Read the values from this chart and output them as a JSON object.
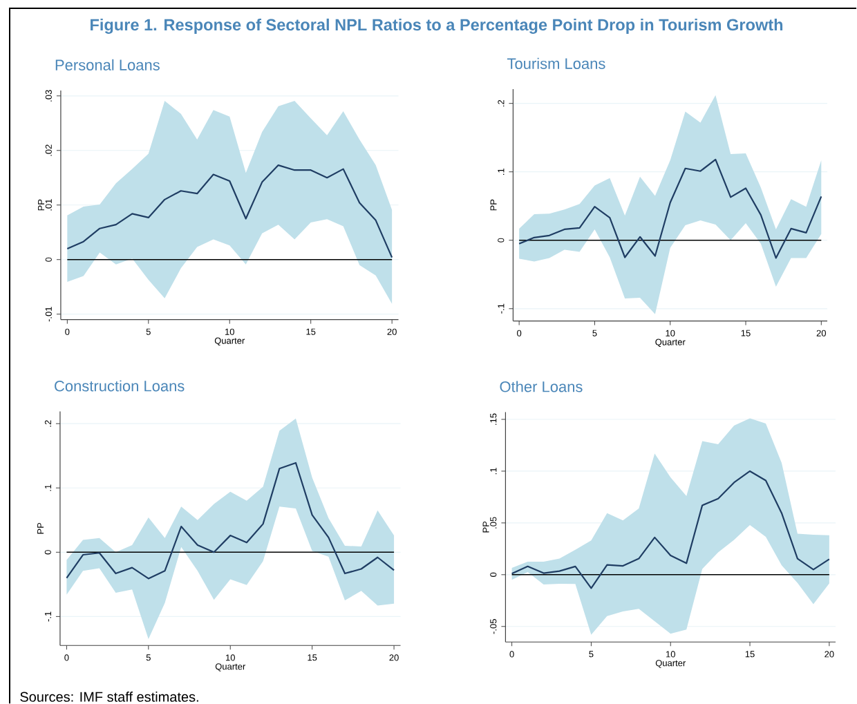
{
  "chart_data": [
    {
      "type": "line",
      "title": "Personal Loans",
      "xlabel": "Quarter",
      "ylabel": "PP",
      "annotations": [
        "Figure 1. Response of Sectoral  NPL Ratios to a Percentage Point Drop in Tourism Growth",
        "Sources: IMF staff estimates."
      ],
      "x": [
        0,
        1,
        2,
        3,
        4,
        5,
        6,
        7,
        8,
        9,
        10,
        11,
        12,
        13,
        14,
        15,
        16,
        17,
        18,
        19,
        20
      ],
      "series": [
        {
          "color": "#1f3d63",
          "values": [
            0.002,
            0.0033,
            0.0057,
            0.0064,
            0.0084,
            0.0077,
            0.011,
            0.0126,
            0.0121,
            0.0156,
            0.0144,
            0.0075,
            0.0142,
            0.0173,
            0.0164,
            0.0164,
            0.015,
            0.0166,
            0.0104,
            0.0072,
            0.0004
          ],
          "upper": [
            0.0081,
            0.0097,
            0.0101,
            0.014,
            0.0166,
            0.0194,
            0.0291,
            0.0267,
            0.022,
            0.0274,
            0.0262,
            0.0159,
            0.0234,
            0.0281,
            0.0291,
            0.0259,
            0.0228,
            0.0272,
            0.022,
            0.0173,
            0.0091
          ],
          "lower": [
            -0.0041,
            -0.003,
            0.0013,
            -0.0009,
            0.0002,
            -0.0037,
            -0.0071,
            -0.0016,
            0.0023,
            0.0037,
            0.0026,
            -0.0009,
            0.0048,
            0.0064,
            0.0037,
            0.0068,
            0.0074,
            0.0061,
            -0.001,
            -0.0029,
            -0.0081
          ]
        }
      ],
      "xlim": [
        -0.4,
        20.4
      ],
      "ylim": [
        -0.011,
        0.031
      ],
      "xticks": [
        0,
        5,
        10,
        15,
        20
      ],
      "yticks": [
        {
          "value": -0.01,
          "label": "-.01"
        },
        0,
        {
          "value": 0.01,
          "label": ".01"
        },
        {
          "value": 0.02,
          "label": ".02"
        },
        {
          "value": 0.03,
          "label": ".03"
        }
      ],
      "grid": "y",
      "ref_lines": [
        {
          "axis": "y",
          "value": 0,
          "color": "#000000"
        }
      ]
    },
    {
      "type": "line",
      "title": "Tourism Loans",
      "xlabel": "Quarter",
      "ylabel": "PP",
      "x": [
        0,
        1,
        2,
        3,
        4,
        5,
        6,
        7,
        8,
        9,
        10,
        11,
        12,
        13,
        14,
        15,
        16,
        17,
        18,
        19,
        20
      ],
      "series": [
        {
          "color": "#1f3d63",
          "values": [
            -0.005,
            0.004,
            0.007,
            0.016,
            0.018,
            0.049,
            0.033,
            -0.025,
            0.005,
            -0.023,
            0.055,
            0.105,
            0.101,
            0.118,
            0.063,
            0.076,
            0.037,
            -0.026,
            0.017,
            0.011,
            0.064
          ],
          "upper": [
            0.017,
            0.038,
            0.039,
            0.045,
            0.053,
            0.08,
            0.091,
            0.036,
            0.093,
            0.065,
            0.117,
            0.188,
            0.172,
            0.212,
            0.126,
            0.127,
            0.077,
            0.016,
            0.06,
            0.049,
            0.117
          ],
          "lower": [
            -0.027,
            -0.031,
            -0.026,
            -0.014,
            -0.017,
            0.016,
            -0.025,
            -0.085,
            -0.084,
            -0.108,
            -0.011,
            0.022,
            0.029,
            0.023,
            0,
            0.025,
            -0.005,
            -0.068,
            -0.026,
            -0.026,
            0.009
          ]
        }
      ],
      "xlim": [
        -0.4,
        20.4
      ],
      "ylim": [
        -0.118,
        0.221
      ],
      "xticks": [
        0,
        5,
        10,
        15,
        20
      ],
      "yticks": [
        {
          "value": -0.1,
          "label": "-.1"
        },
        0,
        {
          "value": 0.1,
          "label": ".1"
        },
        {
          "value": 0.2,
          "label": ".2"
        }
      ],
      "grid": "y",
      "ref_lines": [
        {
          "axis": "y",
          "value": 0,
          "color": "#000000"
        }
      ]
    },
    {
      "type": "line",
      "title": "Construction Loans",
      "xlabel": "Quarter",
      "ylabel": "PP",
      "x": [
        0,
        1,
        2,
        3,
        4,
        5,
        6,
        7,
        8,
        9,
        10,
        11,
        12,
        13,
        14,
        15,
        16,
        17,
        18,
        19,
        20
      ],
      "series": [
        {
          "color": "#1f3d63",
          "values": [
            -0.04,
            -0.004,
            -0.001,
            -0.033,
            -0.024,
            -0.041,
            -0.029,
            0.04,
            0.011,
            0,
            0.026,
            0.015,
            0.044,
            0.13,
            0.139,
            0.058,
            0.023,
            -0.033,
            -0.026,
            -0.008,
            -0.028
          ],
          "upper": [
            -0.012,
            0.019,
            0.022,
            0,
            0.011,
            0.054,
            0.022,
            0.071,
            0.05,
            0.075,
            0.094,
            0.08,
            0.102,
            0.189,
            0.208,
            0.116,
            0.053,
            0.01,
            0.009,
            0.065,
            0.026
          ],
          "lower": [
            -0.066,
            -0.029,
            -0.025,
            -0.063,
            -0.058,
            -0.135,
            -0.079,
            0.008,
            -0.029,
            -0.074,
            -0.042,
            -0.051,
            -0.014,
            0.071,
            0.068,
            0.002,
            -0.007,
            -0.075,
            -0.06,
            -0.083,
            -0.08
          ]
        }
      ],
      "xlim": [
        -0.4,
        20.4
      ],
      "ylim": [
        -0.145,
        0.219
      ],
      "xticks": [
        0,
        5,
        10,
        15,
        20
      ],
      "yticks": [
        {
          "value": -0.1,
          "label": "-.1"
        },
        0,
        {
          "value": 0.1,
          "label": ".1"
        },
        {
          "value": 0.2,
          "label": ".2"
        }
      ],
      "grid": "y",
      "ref_lines": [
        {
          "axis": "y",
          "value": 0,
          "color": "#000000"
        }
      ]
    },
    {
      "type": "line",
      "title": "Other Loans",
      "xlabel": "Quarter",
      "ylabel": "PP",
      "x": [
        0,
        1,
        2,
        3,
        4,
        5,
        6,
        7,
        8,
        9,
        10,
        11,
        12,
        13,
        14,
        15,
        16,
        17,
        18,
        19,
        20
      ],
      "series": [
        {
          "color": "#1f3d63",
          "values": [
            0.001,
            0.008,
            0.0015,
            0.0035,
            0.008,
            -0.013,
            0.0095,
            0.0085,
            0.0155,
            0.036,
            0.0185,
            0.011,
            0.067,
            0.0735,
            0.089,
            0.1,
            0.091,
            0.0595,
            0.0155,
            0.005,
            0.015
          ],
          "upper": [
            0.0065,
            0.0125,
            0.0125,
            0.0155,
            0.024,
            0.033,
            0.0595,
            0.0525,
            0.064,
            0.117,
            0.094,
            0.076,
            0.129,
            0.126,
            0.144,
            0.151,
            0.146,
            0.108,
            0.0395,
            0.0385,
            0.038
          ],
          "lower": [
            -0.005,
            0.0025,
            -0.0095,
            -0.0088,
            -0.009,
            -0.058,
            -0.04,
            -0.0355,
            -0.033,
            -0.045,
            -0.057,
            -0.053,
            0.0055,
            0.0215,
            0.0335,
            0.048,
            0.0365,
            0.009,
            -0.008,
            -0.0285,
            -0.0085
          ]
        }
      ],
      "xlim": [
        -0.4,
        20.4
      ],
      "ylim": [
        -0.065,
        0.157
      ],
      "xticks": [
        0,
        5,
        10,
        15,
        20
      ],
      "yticks": [
        {
          "value": -0.05,
          "label": "-.05"
        },
        0,
        {
          "value": 0.05,
          "label": ".05"
        },
        {
          "value": 0.1,
          "label": ".1"
        },
        {
          "value": 0.15,
          "label": ".15"
        }
      ],
      "grid": "y",
      "ref_lines": [
        {
          "axis": "y",
          "value": 0,
          "color": "#000000"
        }
      ]
    }
  ]
}
